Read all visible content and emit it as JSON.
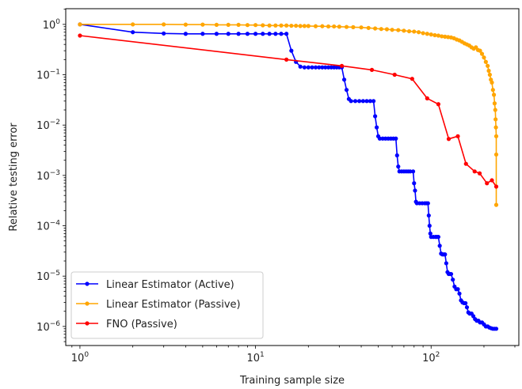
{
  "chart_data": {
    "type": "line",
    "title": "",
    "xlabel": "Training sample size",
    "ylabel": "Relative testing error",
    "xscale": "log",
    "yscale": "log",
    "xlim": [
      0.83,
      316
    ],
    "ylim": [
      4.18e-07,
      2.05
    ],
    "x_ticks": [
      {
        "value": 1,
        "base": "10",
        "exp": "0"
      },
      {
        "value": 10,
        "base": "10",
        "exp": "1"
      },
      {
        "value": 100,
        "base": "10",
        "exp": "2"
      }
    ],
    "y_ticks": [
      {
        "value": 1,
        "base": "10",
        "exp": "0"
      },
      {
        "value": 0.1,
        "base": "10",
        "exp": "−1"
      },
      {
        "value": 0.01,
        "base": "10",
        "exp": "−2"
      },
      {
        "value": 0.001,
        "base": "10",
        "exp": "−3"
      },
      {
        "value": 0.0001,
        "base": "10",
        "exp": "−4"
      },
      {
        "value": 1e-05,
        "base": "10",
        "exp": "−5"
      },
      {
        "value": 1e-06,
        "base": "10",
        "exp": "−6"
      }
    ],
    "grid": false,
    "legend_placement": "lower-left",
    "series": [
      {
        "name": "Linear Estimator (Active)",
        "color": "#0000ff",
        "x": [
          1,
          2,
          3,
          4,
          5,
          6,
          7,
          8,
          9,
          10,
          11,
          12,
          13,
          14,
          15,
          16,
          17,
          18,
          19,
          20,
          21,
          22,
          23,
          24,
          25,
          26,
          27,
          28,
          29,
          30,
          31,
          32,
          33,
          34,
          35,
          37,
          39,
          41,
          43,
          45,
          47,
          48,
          49,
          50,
          51,
          53,
          55,
          57,
          59,
          61,
          63,
          64,
          65,
          66,
          68,
          70,
          72,
          74,
          76,
          79,
          80,
          81,
          82,
          83,
          86,
          89,
          92,
          94,
          96,
          97,
          98,
          99,
          100,
          103,
          106,
          108,
          110,
          112,
          114,
          116,
          118,
          120,
          122,
          124,
          126,
          128,
          130,
          133,
          136,
          139,
          142,
          145,
          148,
          151,
          154,
          157,
          160,
          163,
          166,
          170,
          174,
          178,
          182,
          186,
          190,
          195,
          200,
          205,
          210,
          215,
          220,
          225,
          230,
          235
        ],
        "y": [
          1.0,
          0.7,
          0.66,
          0.65,
          0.65,
          0.65,
          0.65,
          0.65,
          0.65,
          0.65,
          0.65,
          0.65,
          0.65,
          0.65,
          0.65,
          0.3,
          0.18,
          0.145,
          0.14,
          0.14,
          0.14,
          0.14,
          0.14,
          0.14,
          0.14,
          0.14,
          0.14,
          0.14,
          0.14,
          0.14,
          0.14,
          0.08,
          0.05,
          0.033,
          0.03,
          0.03,
          0.03,
          0.03,
          0.03,
          0.03,
          0.03,
          0.015,
          0.009,
          0.006,
          0.0054,
          0.0054,
          0.0054,
          0.0054,
          0.0054,
          0.0054,
          0.0054,
          0.0025,
          0.0015,
          0.0012,
          0.0012,
          0.0012,
          0.0012,
          0.0012,
          0.0012,
          0.0012,
          0.0007,
          0.0005,
          0.0003,
          0.00028,
          0.00028,
          0.00028,
          0.00028,
          0.00028,
          0.00028,
          0.00016,
          0.0001,
          7e-05,
          6e-05,
          6e-05,
          6e-05,
          6e-05,
          6e-05,
          4e-05,
          2.8e-05,
          2.7e-05,
          2.7e-05,
          2.7e-05,
          1.8e-05,
          1.2e-05,
          1.1e-05,
          1.1e-05,
          1.1e-05,
          8.5e-06,
          6.2e-06,
          5.5e-06,
          5.5e-06,
          4.5e-06,
          3.3e-06,
          3e-06,
          2.9e-06,
          2.9e-06,
          2.4e-06,
          1.9e-06,
          1.8e-06,
          1.8e-06,
          1.6e-06,
          1.4e-06,
          1.3e-06,
          1.3e-06,
          1.2e-06,
          1.2e-06,
          1.1e-06,
          1e-06,
          1e-06,
          9.5e-07,
          9.2e-07,
          9e-07,
          9e-07,
          9e-07
        ]
      },
      {
        "name": "Linear Estimator (Passive)",
        "color": "#ffa500",
        "x": [
          1,
          2,
          3,
          4,
          5,
          6,
          7,
          8,
          9,
          10,
          11,
          12,
          13,
          14,
          15,
          16,
          17,
          18,
          19,
          20,
          22,
          24,
          26,
          28,
          30,
          33,
          36,
          40,
          44,
          48,
          52,
          56,
          60,
          65,
          70,
          75,
          80,
          85,
          90,
          95,
          100,
          105,
          110,
          115,
          120,
          125,
          130,
          135,
          140,
          145,
          150,
          155,
          160,
          165,
          170,
          175,
          180,
          185,
          190,
          195,
          200,
          205,
          210,
          213,
          216,
          219,
          222,
          225,
          228,
          230,
          232,
          233,
          234,
          235,
          235,
          235
        ],
        "y": [
          1.0,
          1.0,
          1.0,
          0.99,
          0.99,
          0.98,
          0.98,
          0.98,
          0.97,
          0.97,
          0.96,
          0.95,
          0.95,
          0.95,
          0.95,
          0.94,
          0.94,
          0.93,
          0.93,
          0.93,
          0.92,
          0.92,
          0.91,
          0.91,
          0.9,
          0.89,
          0.88,
          0.87,
          0.85,
          0.83,
          0.81,
          0.8,
          0.78,
          0.77,
          0.75,
          0.73,
          0.72,
          0.7,
          0.67,
          0.65,
          0.63,
          0.61,
          0.6,
          0.58,
          0.57,
          0.56,
          0.55,
          0.53,
          0.5,
          0.48,
          0.45,
          0.42,
          0.4,
          0.38,
          0.35,
          0.33,
          0.35,
          0.31,
          0.3,
          0.26,
          0.22,
          0.18,
          0.15,
          0.12,
          0.1,
          0.08,
          0.07,
          0.05,
          0.04,
          0.027,
          0.02,
          0.013,
          0.009,
          0.006,
          0.0026,
          0.00026
        ]
      },
      {
        "name": "FNO (Passive)",
        "color": "#ff0000",
        "x": [
          1,
          15,
          31,
          46,
          62,
          78,
          95,
          110,
          126,
          142,
          158,
          177,
          189,
          208,
          222,
          235
        ],
        "y": [
          0.6,
          0.2,
          0.15,
          0.125,
          0.1,
          0.083,
          0.034,
          0.026,
          0.0053,
          0.006,
          0.0017,
          0.0012,
          0.0011,
          0.0007,
          0.0008,
          0.0006
        ]
      }
    ]
  }
}
